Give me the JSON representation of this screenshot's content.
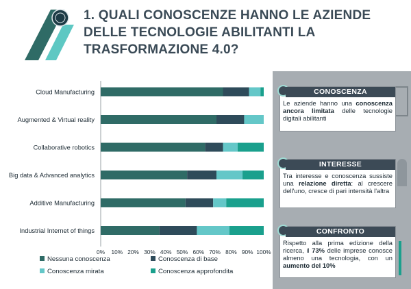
{
  "title": "1. QUALI CONOSCENZE HANNO LE AZIENDE DELLE TECNOLOGIE ABILITANTI LA TRASFORMAZIONE 4.0?",
  "colors": {
    "nessuna": "#2f6b66",
    "base": "#2e4b5a",
    "mirata": "#64c7c8",
    "approfondita": "#1aa08d",
    "panel": "#a7adb2",
    "card_head": "#3c4a56"
  },
  "chart_data": {
    "type": "bar",
    "orientation": "horizontal",
    "stacked": true,
    "categories": [
      "Cloud Manufacturing",
      "Augmented & Virtual reality",
      "Collaborative robotics",
      "Big data & Advanced analytics",
      "Additive Manufacturing",
      "Industrial Internet of things"
    ],
    "series": [
      {
        "name": "Nessuna conoscenza",
        "values": [
          75,
          71,
          64,
          53,
          52,
          36
        ]
      },
      {
        "name": "Conoscenza di base",
        "values": [
          16,
          17,
          11,
          18,
          17,
          23
        ]
      },
      {
        "name": "Conoscenza mirata",
        "values": [
          7,
          12,
          9,
          16,
          8,
          20
        ]
      },
      {
        "name": "Conoscenza approfondita",
        "values": [
          2,
          0,
          16,
          13,
          23,
          21
        ]
      }
    ],
    "xticks": [
      "0%",
      "10%",
      "20%",
      "30%",
      "40%",
      "50%",
      "60%",
      "70%",
      "80%",
      "90%",
      "100%"
    ],
    "xlim": [
      0,
      100
    ],
    "grid": false,
    "legend": "bottom"
  },
  "cards": {
    "conoscenza": {
      "title": "CONOSCENZA",
      "t1": "Le aziende hanno una ",
      "b1": "conoscenza ancora limitata",
      "t2": " delle tecnologie digitali abilitanti"
    },
    "interesse": {
      "title": "INTERESSE",
      "t1": "Tra interesse e conoscenza sussiste una ",
      "b1": "relazione diretta",
      "t2": ": al crescere dell'uno, cresce di pari intensità l'altra"
    },
    "confronto": {
      "title": "CONFRONTO",
      "t1": "Rispetto alla prima edizione della ricerca, il ",
      "b1": "73%",
      "t2": " delle imprese conosce almeno una tecnologia, con un ",
      "b2": "aumento del 10%"
    }
  }
}
